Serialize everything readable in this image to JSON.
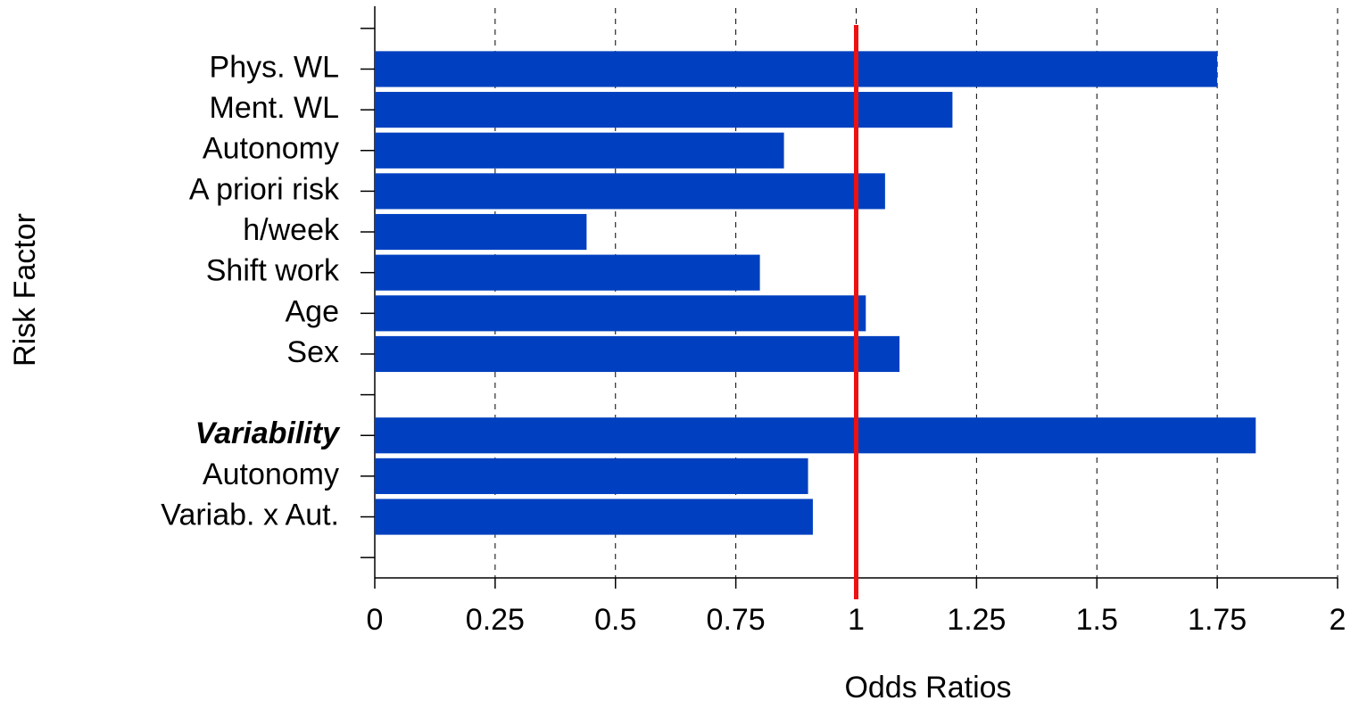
{
  "chart_data": {
    "type": "barh",
    "ylabel": "Risk Factor",
    "xlabel": "Odds Ratios",
    "categories": [
      null,
      "Phys. WL",
      "Ment. WL",
      "Autonomy",
      "A priori risk",
      "h/week",
      "Shift work",
      "Age",
      "Sex",
      null,
      "Variability",
      "Autonomy",
      "Variab. x Aut.",
      null
    ],
    "values": [
      null,
      1.75,
      1.2,
      0.85,
      1.06,
      0.44,
      0.8,
      1.02,
      1.09,
      null,
      1.83,
      0.9,
      0.91,
      null
    ],
    "color": "#0040c0",
    "xlim": [
      0,
      2
    ],
    "xticks": [
      0,
      0.25,
      0.5,
      0.75,
      1,
      1.25,
      1.5,
      1.75,
      2
    ],
    "grid": true,
    "reference_line": {
      "x": 1,
      "color": "#ee1111"
    }
  }
}
